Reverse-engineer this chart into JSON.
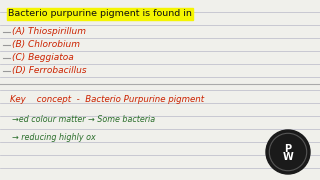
{
  "bg_color": "#f0f0eb",
  "line_color": "#b8b8c8",
  "title": "Bacterio purpurine pigment is found in",
  "title_bg": "#f5f500",
  "options": [
    "(A) Thiospirillum",
    "(B) Chlorobium",
    "(C) Beggiatoa",
    "(D) Ferrobacillus"
  ],
  "options_color": "#cc2200",
  "key_line": "Key    concept  -  Bacterio Purpurine pigment",
  "key_color": "#cc2200",
  "sub_line1": "→ed colour matter → Some bacteria",
  "sub_line2": "→ reducing highly ox",
  "sub_color": "#2a6e2a",
  "fig_width": 3.2,
  "fig_height": 1.8,
  "dpi": 100,
  "title_fontsize": 6.8,
  "option_fontsize": 6.5,
  "key_fontsize": 6.2,
  "sub_fontsize": 5.8
}
